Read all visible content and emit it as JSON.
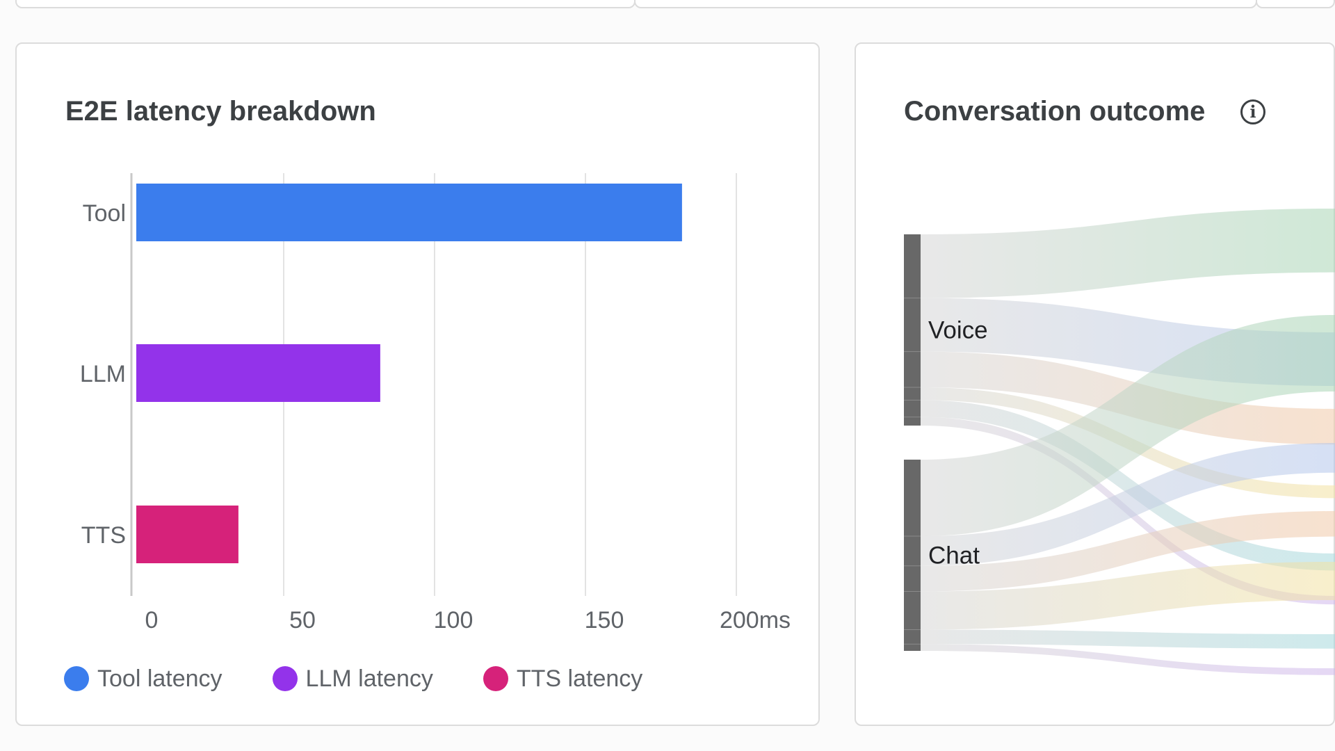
{
  "latency_card": {
    "title": "E2E latency breakdown",
    "legend": [
      {
        "label": "Tool latency",
        "color": "#3b7ded"
      },
      {
        "label": "LLM latency",
        "color": "#9333ea"
      },
      {
        "label": "TTS latency",
        "color": "#d6227a"
      }
    ]
  },
  "outcome_card": {
    "title": "Conversation outcome",
    "info_icon": "info-icon"
  },
  "chart_data": [
    {
      "type": "bar",
      "orientation": "horizontal",
      "title": "E2E latency breakdown",
      "categories": [
        "Tool",
        "LLM",
        "TTS"
      ],
      "values": [
        182,
        82,
        35
      ],
      "colors": [
        "#3b7ded",
        "#9333ea",
        "#d6227a"
      ],
      "xlim": [
        0,
        200
      ],
      "x_ticks": [
        "0",
        "50",
        "100",
        "150",
        "200ms"
      ],
      "x_tick_values": [
        0,
        50,
        100,
        150,
        200
      ],
      "grid": true,
      "legend": [
        "Tool latency",
        "LLM latency",
        "TTS latency"
      ],
      "legend_position": "bottom"
    },
    {
      "type": "sankey",
      "title": "Conversation outcome",
      "sources": [
        "Voice",
        "Chat"
      ],
      "links": [
        {
          "source": "Voice",
          "color": "#a8d5b5",
          "value": 75
        },
        {
          "source": "Voice",
          "color": "#b4c7ec",
          "value": 63
        },
        {
          "source": "Voice",
          "color": "#f1c9a8",
          "value": 42
        },
        {
          "source": "Voice",
          "color": "#f3e2a2",
          "value": 15
        },
        {
          "source": "Voice",
          "color": "#a6d8dc",
          "value": 20
        },
        {
          "source": "Voice",
          "color": "#d0b8ec",
          "value": 10
        },
        {
          "source": "Chat",
          "color": "#a8d5b5",
          "value": 90
        },
        {
          "source": "Chat",
          "color": "#b4c7ec",
          "value": 35
        },
        {
          "source": "Chat",
          "color": "#f1c9a8",
          "value": 30
        },
        {
          "source": "Chat",
          "color": "#f3e2a2",
          "value": 45
        },
        {
          "source": "Chat",
          "color": "#a6d8dc",
          "value": 17
        },
        {
          "source": "Chat",
          "color": "#d0b8ec",
          "value": 8
        }
      ]
    }
  ]
}
